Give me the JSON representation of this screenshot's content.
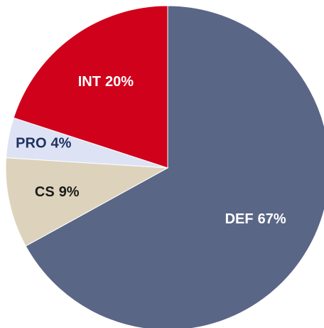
{
  "chart_data": {
    "type": "pie",
    "categories": [
      "DEF",
      "CS",
      "PRO",
      "INT"
    ],
    "values": [
      67,
      9,
      4,
      20
    ],
    "value_labels": [
      "67%",
      "9%",
      "4%",
      "20%"
    ],
    "colors": [
      "#5a6686",
      "#ddd3bd",
      "#dde3f5",
      "#d0021b"
    ],
    "label_colors": [
      "#ffffff",
      "#1a1a1a",
      "#1f3160",
      "#ffffff"
    ]
  }
}
